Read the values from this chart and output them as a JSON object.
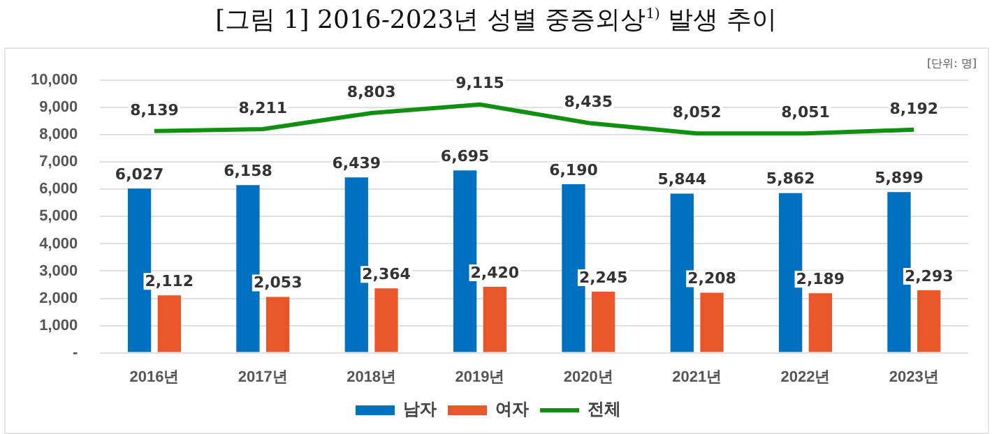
{
  "chart_data": {
    "type": "bar",
    "title": "[그림 1] 2016-2023년 성별 중증외상$^{1)}$ 발생 추이",
    "annotations": [
      "[단위: 명]"
    ],
    "categories": [
      "2016년",
      "2017년",
      "2018년",
      "2019년",
      "2020년",
      "2021년",
      "2022년",
      "2023년"
    ],
    "series": [
      {
        "name": "남자",
        "color": "#0070c0",
        "values": [
          6027,
          6158,
          6439,
          6695,
          6190,
          5844,
          5862,
          5899
        ],
        "value_labels": [
          "6,027",
          "6,158",
          "6,439",
          "6,695",
          "6,190",
          "5,844",
          "5,862",
          "5,899"
        ]
      },
      {
        "name": "여자",
        "color": "#e8562a",
        "values": [
          2112,
          2053,
          2364,
          2420,
          2245,
          2208,
          2189,
          2293
        ],
        "value_labels": [
          "2,112",
          "2,053",
          "2,364",
          "2,420",
          "2,245",
          "2,208",
          "2,189",
          "2,293"
        ]
      },
      {
        "name": "전체",
        "type": "line",
        "color": "#109010",
        "values": [
          8139,
          8211,
          8803,
          9115,
          8435,
          8052,
          8051,
          8192
        ],
        "value_labels": [
          "8,139",
          "8,211",
          "8,803",
          "9,115",
          "8,435",
          "8,052",
          "8,051",
          "8,192"
        ]
      }
    ],
    "ylim": [
      0,
      10000
    ],
    "yticks": [
      {
        "value": 0,
        "label": "-"
      },
      {
        "value": 1000,
        "label": "1,000"
      },
      {
        "value": 2000,
        "label": "2,000"
      },
      {
        "value": 3000,
        "label": "3,000"
      },
      {
        "value": 4000,
        "label": "4,000"
      },
      {
        "value": 5000,
        "label": "5,000"
      },
      {
        "value": 6000,
        "label": "6,000"
      },
      {
        "value": 7000,
        "label": "7,000"
      },
      {
        "value": 8000,
        "label": "8,000"
      },
      {
        "value": 9000,
        "label": "9,000"
      },
      {
        "value": 10000,
        "label": "10,000"
      }
    ],
    "grid": "y",
    "legend": "bottom",
    "marker": "none"
  }
}
